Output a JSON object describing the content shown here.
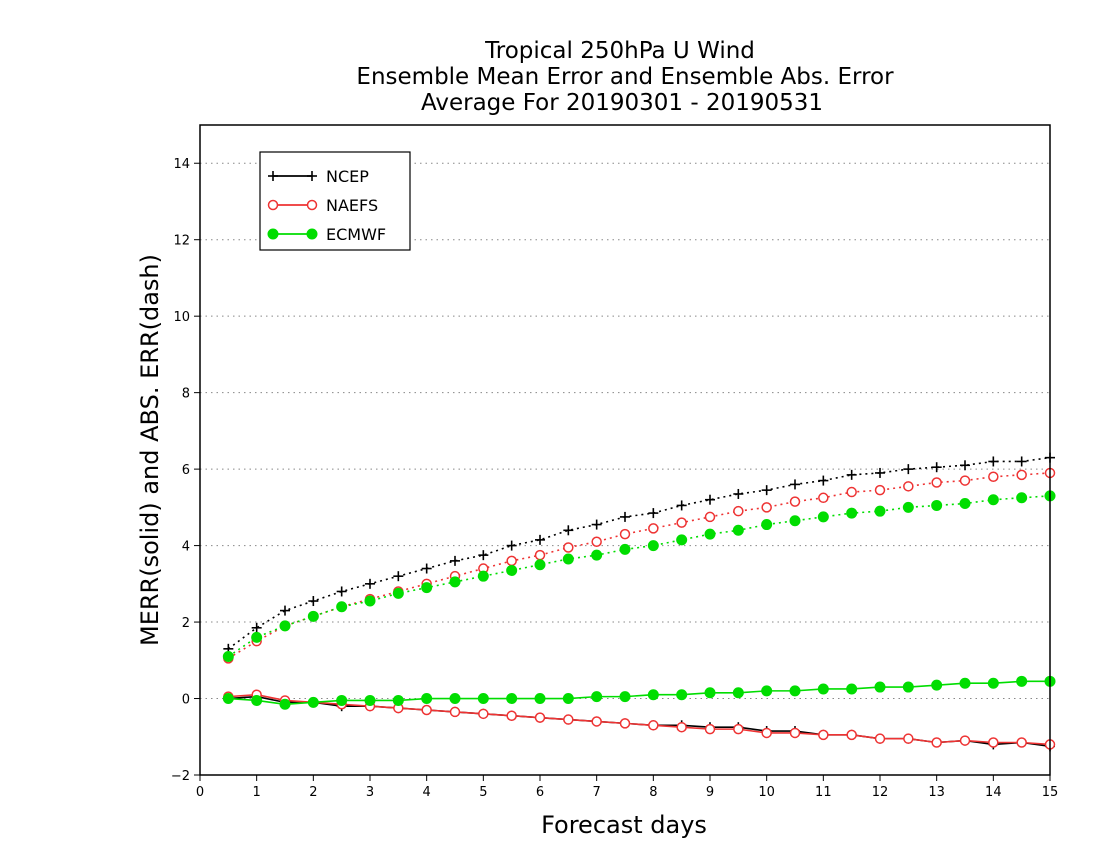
{
  "chart_data": {
    "type": "line",
    "title": [
      "Tropical 250hPa U Wind",
      "Ensemble Mean Error and Ensemble Abs. Error",
      "Average For 20190301 - 20190531"
    ],
    "xlabel": "Forecast days",
    "ylabel": "MERR(solid) and ABS. ERR(dash)",
    "xlim": [
      0,
      15
    ],
    "ylim": [
      -2,
      15
    ],
    "xticks": [
      0,
      1,
      2,
      3,
      4,
      5,
      6,
      7,
      8,
      9,
      10,
      11,
      12,
      13,
      14,
      15
    ],
    "yticks": [
      -2,
      0,
      2,
      4,
      6,
      8,
      10,
      12,
      14
    ],
    "y_grid": true,
    "legend_position": "top-left",
    "x": [
      0.5,
      1,
      1.5,
      2,
      2.5,
      3,
      3.5,
      4,
      4.5,
      5,
      5.5,
      6,
      6.5,
      7,
      7.5,
      8,
      8.5,
      9,
      9.5,
      10,
      10.5,
      11,
      11.5,
      12,
      12.5,
      13,
      13.5,
      14,
      14.5,
      15
    ],
    "series": [
      {
        "name": "NCEP",
        "color": "#000000",
        "marker": "plus",
        "merr": [
          0.0,
          0.05,
          -0.1,
          -0.1,
          -0.2,
          -0.2,
          -0.25,
          -0.3,
          -0.35,
          -0.4,
          -0.45,
          -0.5,
          -0.55,
          -0.6,
          -0.65,
          -0.7,
          -0.7,
          -0.75,
          -0.75,
          -0.85,
          -0.85,
          -0.95,
          -0.95,
          -1.05,
          -1.05,
          -1.15,
          -1.1,
          -1.2,
          -1.15,
          -1.25
        ],
        "abs_err": [
          1.3,
          1.85,
          2.3,
          2.55,
          2.8,
          3.0,
          3.2,
          3.4,
          3.6,
          3.75,
          4.0,
          4.15,
          4.4,
          4.55,
          4.75,
          4.85,
          5.05,
          5.2,
          5.35,
          5.45,
          5.6,
          5.7,
          5.85,
          5.9,
          6.0,
          6.05,
          6.1,
          6.2,
          6.2,
          6.3
        ]
      },
      {
        "name": "NAEFS",
        "color": "#ee3333",
        "marker": "open-circle",
        "merr": [
          0.05,
          0.1,
          -0.05,
          -0.1,
          -0.15,
          -0.2,
          -0.25,
          -0.3,
          -0.35,
          -0.4,
          -0.45,
          -0.5,
          -0.55,
          -0.6,
          -0.65,
          -0.7,
          -0.75,
          -0.8,
          -0.8,
          -0.9,
          -0.9,
          -0.95,
          -0.95,
          -1.05,
          -1.05,
          -1.15,
          -1.1,
          -1.15,
          -1.15,
          -1.2
        ],
        "abs_err": [
          1.05,
          1.5,
          1.9,
          2.15,
          2.4,
          2.6,
          2.8,
          3.0,
          3.2,
          3.4,
          3.6,
          3.75,
          3.95,
          4.1,
          4.3,
          4.45,
          4.6,
          4.75,
          4.9,
          5.0,
          5.15,
          5.25,
          5.4,
          5.45,
          5.55,
          5.65,
          5.7,
          5.8,
          5.85,
          5.9
        ]
      },
      {
        "name": "ECMWF",
        "color": "#00dd00",
        "marker": "filled-circle",
        "merr": [
          0.0,
          -0.05,
          -0.15,
          -0.1,
          -0.05,
          -0.05,
          -0.05,
          0.0,
          0.0,
          0.0,
          0.0,
          0.0,
          0.0,
          0.05,
          0.05,
          0.1,
          0.1,
          0.15,
          0.15,
          0.2,
          0.2,
          0.25,
          0.25,
          0.3,
          0.3,
          0.35,
          0.4,
          0.4,
          0.45,
          0.45
        ],
        "abs_err": [
          1.1,
          1.6,
          1.9,
          2.15,
          2.4,
          2.55,
          2.75,
          2.9,
          3.05,
          3.2,
          3.35,
          3.5,
          3.65,
          3.75,
          3.9,
          4.0,
          4.15,
          4.3,
          4.4,
          4.55,
          4.65,
          4.75,
          4.85,
          4.9,
          5.0,
          5.05,
          5.1,
          5.2,
          5.25,
          5.3
        ]
      }
    ]
  }
}
